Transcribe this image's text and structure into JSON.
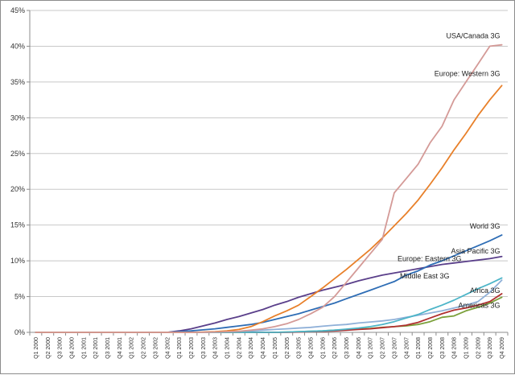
{
  "chart_data": {
    "type": "line",
    "title": "",
    "xlabel": "",
    "ylabel": "",
    "ylim": [
      0,
      45
    ],
    "y_tick_labels": [
      "0%",
      "5%",
      "10%",
      "15%",
      "20%",
      "25%",
      "30%",
      "35%",
      "40%",
      "45%"
    ],
    "y_ticks": [
      0,
      5,
      10,
      15,
      20,
      25,
      30,
      35,
      40,
      45
    ],
    "grid": true,
    "legend": "inline labels at line ends",
    "categories": [
      "Q1 2000",
      "Q2 2000",
      "Q3 2000",
      "Q4 2000",
      "Q1 2001",
      "Q2 2001",
      "Q3 2001",
      "Q4 2001",
      "Q1 2002",
      "Q2 2002",
      "Q3 2002",
      "Q4 2002",
      "Q1 2003",
      "Q2 2003",
      "Q3 2003",
      "Q4 2003",
      "Q1 2004",
      "Q2 2004",
      "Q3 2004",
      "Q4 2004",
      "Q1 2005",
      "Q2 2005",
      "Q3 2005",
      "Q4 2005",
      "Q1 2006",
      "Q2 2006",
      "Q3 2006",
      "Q4 2006",
      "Q1 2007",
      "Q2 2007",
      "Q3 2007",
      "Q4 2007",
      "Q1 2008",
      "Q2 2008",
      "Q3 2008",
      "Q4 2008",
      "Q1 2009",
      "Q2 2009",
      "Q3 2009",
      "Q4 2009"
    ],
    "series": [
      {
        "name": "USA/Canada 3G",
        "color": "#d49a97",
        "values": [
          0,
          0,
          0,
          0,
          0,
          0,
          0,
          0,
          0,
          0,
          0,
          0,
          0,
          0,
          0,
          0.05,
          0.1,
          0.15,
          0.3,
          0.5,
          0.8,
          1.2,
          1.8,
          2.6,
          3.5,
          5.0,
          7.0,
          9.0,
          11.0,
          13.0,
          19.5,
          21.5,
          23.5,
          26.5,
          28.8,
          32.5,
          35.0,
          37.5,
          40.0,
          40.2
        ]
      },
      {
        "name": "Europe: Western 3G",
        "color": "#e8802a",
        "values": [
          0,
          0,
          0,
          0,
          0,
          0,
          0,
          0,
          0,
          0,
          0,
          0,
          0,
          0,
          0.05,
          0.1,
          0.2,
          0.4,
          0.8,
          1.5,
          2.3,
          3.0,
          3.8,
          5.0,
          6.2,
          7.5,
          8.8,
          10.2,
          11.6,
          13.2,
          14.9,
          16.6,
          18.5,
          20.7,
          23.0,
          25.5,
          27.8,
          30.3,
          32.5,
          34.5
        ]
      },
      {
        "name": "World 3G",
        "color": "#2e6db5",
        "values": [
          0,
          0,
          0,
          0,
          0,
          0,
          0,
          0,
          0,
          0,
          0,
          0,
          0.1,
          0.2,
          0.35,
          0.5,
          0.7,
          0.9,
          1.1,
          1.4,
          1.8,
          2.2,
          2.6,
          3.1,
          3.6,
          4.1,
          4.7,
          5.3,
          5.9,
          6.5,
          7.1,
          8.0,
          8.6,
          9.4,
          10.0,
          10.7,
          11.4,
          12.1,
          12.8,
          13.6
        ]
      },
      {
        "name": "Asia Pacific 3G",
        "color": "#5a3f8a",
        "values": [
          0,
          0,
          0,
          0,
          0,
          0,
          0,
          0,
          0,
          0,
          0,
          0,
          0.2,
          0.5,
          0.9,
          1.3,
          1.8,
          2.2,
          2.7,
          3.2,
          3.8,
          4.3,
          4.9,
          5.4,
          5.9,
          6.3,
          6.7,
          7.2,
          7.6,
          8.0,
          8.3,
          8.6,
          8.9,
          9.2,
          9.5,
          9.7,
          9.9,
          10.1,
          10.3,
          10.6
        ]
      },
      {
        "name": "Europe: Eastern 3G",
        "color": "#4db5c8",
        "values": [
          0,
          0,
          0,
          0,
          0,
          0,
          0,
          0,
          0,
          0,
          0,
          0,
          0,
          0,
          0,
          0,
          0,
          0,
          0,
          0,
          0,
          0.05,
          0.1,
          0.15,
          0.2,
          0.3,
          0.45,
          0.6,
          0.8,
          1.1,
          1.5,
          2.0,
          2.5,
          3.2,
          3.8,
          4.5,
          5.3,
          6.1,
          6.8,
          7.6
        ]
      },
      {
        "name": "Middle East 3G",
        "color": "#8fb0d8",
        "values": [
          0,
          0,
          0,
          0,
          0,
          0,
          0,
          0,
          0,
          0,
          0,
          0,
          0,
          0,
          0,
          0,
          0.05,
          0.1,
          0.2,
          0.3,
          0.4,
          0.5,
          0.6,
          0.7,
          0.85,
          1.0,
          1.1,
          1.3,
          1.45,
          1.6,
          1.8,
          2.1,
          2.4,
          2.7,
          3.0,
          3.4,
          3.8,
          4.3,
          5.6,
          7.3
        ]
      },
      {
        "name": "Africa 3G",
        "color": "#b03030",
        "values": [
          0,
          0,
          0,
          0,
          0,
          0,
          0,
          0,
          0,
          0,
          0,
          0,
          0,
          0,
          0,
          0,
          0,
          0,
          0,
          0,
          0,
          0,
          0.05,
          0.1,
          0.15,
          0.2,
          0.3,
          0.4,
          0.5,
          0.65,
          0.8,
          1.0,
          1.4,
          2.0,
          2.6,
          3.1,
          3.4,
          3.8,
          4.3,
          5.4
        ]
      },
      {
        "name": "Americas 3G",
        "color": "#7ba03a",
        "values": [
          0,
          0,
          0,
          0,
          0,
          0,
          0,
          0,
          0,
          0,
          0,
          0,
          0,
          0,
          0,
          0,
          0,
          0,
          0,
          0,
          0,
          0.05,
          0.1,
          0.15,
          0.2,
          0.3,
          0.35,
          0.45,
          0.55,
          0.7,
          0.8,
          0.9,
          1.1,
          1.5,
          2.1,
          2.3,
          3.0,
          3.5,
          4.1,
          4.9
        ]
      }
    ]
  }
}
